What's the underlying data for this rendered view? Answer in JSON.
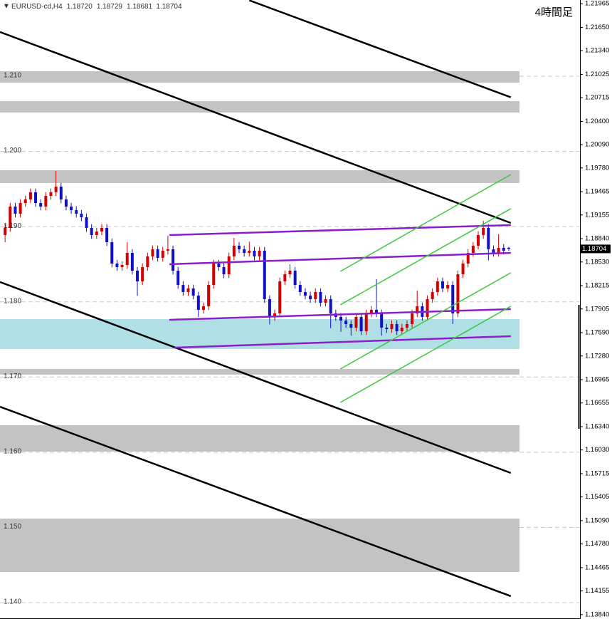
{
  "chart_data": {
    "type": "candlestick",
    "title": "4時間足",
    "symbol": "EURUSD-cd,H4",
    "header_ohlc": [
      "1.18720",
      "1.18729",
      "1.18681",
      "1.18704"
    ],
    "current_price": {
      "value": 1.18704,
      "label": "1.18704"
    },
    "up_color": "#d40000",
    "down_color": "#1010c8",
    "xlim": [
      -1,
      113
    ],
    "ylim": [
      1.13782,
      1.22014
    ],
    "yticks_left": [
      {
        "value": 1.21,
        "label": "1.210"
      },
      {
        "value": 1.2,
        "label": "1.200"
      },
      {
        "value": 1.19,
        "label": "1.190"
      },
      {
        "value": 1.18,
        "label": "1.180"
      },
      {
        "value": 1.17,
        "label": "1.170"
      },
      {
        "value": 1.16,
        "label": "1.160"
      },
      {
        "value": 1.15,
        "label": "1.150"
      },
      {
        "value": 1.14,
        "label": "1.140"
      }
    ],
    "yticks": [
      1.21965,
      {
        "value": 1.2165,
        "label": "1.21650"
      },
      {
        "value": 1.2134,
        "label": "1.21340"
      },
      1.21025,
      1.20715,
      {
        "value": 1.204,
        "label": "1.20400"
      },
      {
        "value": 1.2009,
        "label": "1.20090"
      },
      {
        "value": 1.1978,
        "label": "1.19780"
      },
      1.19465,
      1.19155,
      {
        "value": 1.1884,
        "label": "1.18840"
      },
      {
        "value": 1.1853,
        "label": "1.18530"
      },
      1.18215,
      1.17905,
      {
        "value": 1.1759,
        "label": "1.17590"
      },
      {
        "value": 1.1728,
        "label": "1.17280"
      },
      1.16965,
      1.16655,
      {
        "value": 1.1634,
        "label": "1.16340"
      },
      {
        "value": 1.1603,
        "label": "1.16030"
      },
      1.15715,
      1.15405,
      {
        "value": 1.1509,
        "label": "1.15090"
      },
      {
        "value": 1.1478,
        "label": "1.14780"
      },
      1.14465,
      1.14155,
      {
        "value": 1.1384,
        "label": "1.13840"
      }
    ],
    "grid": true,
    "zones": [
      {
        "low": 1.20915,
        "high": 1.21067,
        "color": "#c3c3c3"
      },
      {
        "low": 1.20517,
        "high": 1.20669,
        "color": "#c3c3c3"
      },
      {
        "low": 1.1958,
        "high": 1.1975,
        "color": "#c3c3c3"
      },
      {
        "low": 1.17372,
        "high": 1.1777,
        "color": "#b0e0e6"
      },
      {
        "low": 1.17032,
        "high": 1.17107,
        "color": "#c3c3c3"
      },
      {
        "low": 1.16009,
        "high": 1.16359,
        "color": "#c3c3c3"
      },
      {
        "low": 1.14408,
        "high": 1.15118,
        "color": "#c3c3c3"
      }
    ],
    "lines": [
      {
        "color": "#000000",
        "points": [
          [
            48,
            1.2201
          ],
          [
            99.4,
            1.2072
          ]
        ]
      },
      {
        "color": "#000000",
        "points": [
          [
            -1,
            1.21588
          ],
          [
            99.4,
            1.19049
          ]
        ]
      },
      {
        "color": "#000000",
        "points": [
          [
            -1,
            1.18263
          ],
          [
            99.4,
            1.15724
          ]
        ]
      },
      {
        "color": "#000000",
        "points": [
          [
            -1,
            1.16605
          ],
          [
            99.4,
            1.14086
          ]
        ]
      },
      {
        "color": "#8a1ec8",
        "points": [
          [
            32.3,
            1.18888
          ],
          [
            99.4,
            1.19021
          ]
        ]
      },
      {
        "color": "#8a1ec8",
        "points": [
          [
            32.3,
            1.185
          ],
          [
            99.4,
            1.18651
          ]
        ]
      },
      {
        "color": "#8a1ec8",
        "points": [
          [
            32.3,
            1.17761
          ],
          [
            99.4,
            1.17903
          ]
        ]
      },
      {
        "color": "#8a1ec8",
        "points": [
          [
            33.3,
            1.17391
          ],
          [
            99.4,
            1.17543
          ]
        ]
      },
      {
        "color": "#3cc83c",
        "points": [
          [
            65.9,
            1.18405
          ],
          [
            99.4,
            1.19693
          ]
        ]
      },
      {
        "color": "#3cc83c",
        "points": [
          [
            65.9,
            1.1796
          ],
          [
            99.4,
            1.19239
          ]
        ]
      },
      {
        "color": "#3cc83c",
        "points": [
          [
            65.9,
            1.17107
          ],
          [
            99.4,
            1.18386
          ]
        ]
      },
      {
        "color": "#3cc83c",
        "points": [
          [
            65.9,
            1.16662
          ],
          [
            99.4,
            1.17941
          ]
        ]
      }
    ],
    "candles": [
      [
        1.18888,
        1.19033,
        1.18793,
        1.18983
      ],
      [
        1.18983,
        1.19317,
        1.18933,
        1.19267
      ],
      [
        1.19267,
        1.19317,
        1.19122,
        1.19172
      ],
      [
        1.19172,
        1.19364,
        1.19122,
        1.19314
      ],
      [
        1.19314,
        1.19412,
        1.19264,
        1.19362
      ],
      [
        1.19362,
        1.19507,
        1.19312,
        1.19457
      ],
      [
        1.19457,
        1.19507,
        1.19264,
        1.19314
      ],
      [
        1.19314,
        1.19364,
        1.19217,
        1.19267
      ],
      [
        1.19267,
        1.19459,
        1.19217,
        1.19409
      ],
      [
        1.19409,
        1.19507,
        1.19359,
        1.19457
      ],
      [
        1.19457,
        1.19741,
        1.19407,
        1.19532
      ],
      [
        1.19532,
        1.19582,
        1.19312,
        1.19362
      ],
      [
        1.19362,
        1.19412,
        1.19217,
        1.19267
      ],
      [
        1.19267,
        1.19317,
        1.1917,
        1.1922
      ],
      [
        1.1922,
        1.1927,
        1.19122,
        1.19172
      ],
      [
        1.19172,
        1.19222,
        1.19075,
        1.19125
      ],
      [
        1.19125,
        1.19175,
        1.18933,
        1.18983
      ],
      [
        1.18983,
        1.19033,
        1.18838,
        1.18888
      ],
      [
        1.18888,
        1.18985,
        1.18838,
        1.18935
      ],
      [
        1.18935,
        1.19033,
        1.18885,
        1.18983
      ],
      [
        1.18983,
        1.19033,
        1.18743,
        1.18793
      ],
      [
        1.18793,
        1.18843,
        1.18459,
        1.18509
      ],
      [
        1.18509,
        1.18559,
        1.18412,
        1.18462
      ],
      [
        1.18462,
        1.1854,
        1.18412,
        1.1849
      ],
      [
        1.1849,
        1.18794,
        1.1844,
        1.18651
      ],
      [
        1.18651,
        1.18701,
        1.18364,
        1.18414
      ],
      [
        1.18414,
        1.18464,
        1.1808,
        1.18272
      ],
      [
        1.18272,
        1.18512,
        1.18222,
        1.18462
      ],
      [
        1.18462,
        1.18654,
        1.18412,
        1.18604
      ],
      [
        1.18604,
        1.18749,
        1.18554,
        1.18699
      ],
      [
        1.18699,
        1.18749,
        1.18535,
        1.18585
      ],
      [
        1.18585,
        1.1873,
        1.18535,
        1.1868
      ],
      [
        1.1868,
        1.1888,
        1.1863,
        1.18699
      ],
      [
        1.18699,
        1.18749,
        1.18364,
        1.18414
      ],
      [
        1.18414,
        1.18464,
        1.18175,
        1.18225
      ],
      [
        1.18225,
        1.18275,
        1.1808,
        1.1813
      ],
      [
        1.1813,
        1.18228,
        1.1808,
        1.18178
      ],
      [
        1.18178,
        1.18228,
        1.18033,
        1.18083
      ],
      [
        1.18083,
        1.18133,
        1.178,
        1.17894
      ],
      [
        1.17894,
        1.17991,
        1.17844,
        1.17941
      ],
      [
        1.17941,
        1.18275,
        1.17891,
        1.18225
      ],
      [
        1.18225,
        1.18559,
        1.18175,
        1.18509
      ],
      [
        1.18509,
        1.18559,
        1.18412,
        1.18462
      ],
      [
        1.18462,
        1.18512,
        1.18317,
        1.18367
      ],
      [
        1.18367,
        1.18654,
        1.18317,
        1.18604
      ],
      [
        1.18604,
        1.1885,
        1.18554,
        1.18746
      ],
      [
        1.18746,
        1.18796,
        1.18649,
        1.18699
      ],
      [
        1.18699,
        1.18749,
        1.18601,
        1.18651
      ],
      [
        1.18651,
        1.188,
        1.18601,
        1.1868
      ],
      [
        1.1868,
        1.1873,
        1.18554,
        1.18604
      ],
      [
        1.18604,
        1.1873,
        1.18554,
        1.1868
      ],
      [
        1.1868,
        1.1873,
        1.17986,
        1.18036
      ],
      [
        1.18036,
        1.18086,
        1.177,
        1.17799
      ],
      [
        1.17799,
        1.17896,
        1.17749,
        1.17846
      ],
      [
        1.17846,
        1.18322,
        1.17796,
        1.18272
      ],
      [
        1.18272,
        1.18417,
        1.18222,
        1.18367
      ],
      [
        1.18367,
        1.185,
        1.18317,
        1.18414
      ],
      [
        1.18414,
        1.18464,
        1.18175,
        1.18225
      ],
      [
        1.18225,
        1.18275,
        1.1808,
        1.1813
      ],
      [
        1.1813,
        1.1818,
        1.18033,
        1.18083
      ],
      [
        1.18083,
        1.18133,
        1.17986,
        1.18036
      ],
      [
        1.18036,
        1.1818,
        1.17986,
        1.1813
      ],
      [
        1.1813,
        1.1818,
        1.17938,
        1.17988
      ],
      [
        1.17988,
        1.18086,
        1.17938,
        1.18036
      ],
      [
        1.18036,
        1.18086,
        1.1765,
        1.17846
      ],
      [
        1.17846,
        1.17896,
        1.17749,
        1.17799
      ],
      [
        1.17799,
        1.17849,
        1.176,
        1.17751
      ],
      [
        1.17751,
        1.17801,
        1.17654,
        1.17704
      ],
      [
        1.17704,
        1.17754,
        1.1755,
        1.17657
      ],
      [
        1.17657,
        1.17849,
        1.17607,
        1.17799
      ],
      [
        1.17799,
        1.17849,
        1.17559,
        1.17609
      ],
      [
        1.17609,
        1.17896,
        1.17559,
        1.17846
      ],
      [
        1.17846,
        1.17944,
        1.17796,
        1.17894
      ],
      [
        1.17894,
        1.183,
        1.17796,
        1.17846
      ],
      [
        1.17846,
        1.17896,
        1.1755,
        1.17657
      ],
      [
        1.17657,
        1.17707,
        1.17588,
        1.17638
      ],
      [
        1.17638,
        1.17754,
        1.17588,
        1.17704
      ],
      [
        1.17704,
        1.17754,
        1.17559,
        1.17609
      ],
      [
        1.17609,
        1.17707,
        1.17559,
        1.17657
      ],
      [
        1.17657,
        1.17754,
        1.17607,
        1.17704
      ],
      [
        1.17704,
        1.17896,
        1.17654,
        1.17846
      ],
      [
        1.17846,
        1.1815,
        1.17796,
        1.17941
      ],
      [
        1.17941,
        1.17991,
        1.17749,
        1.17799
      ],
      [
        1.17799,
        1.18086,
        1.17749,
        1.18036
      ],
      [
        1.18036,
        1.1818,
        1.17986,
        1.1813
      ],
      [
        1.1813,
        1.18322,
        1.1808,
        1.18272
      ],
      [
        1.18272,
        1.18322,
        1.18128,
        1.18178
      ],
      [
        1.18178,
        1.18275,
        1.18128,
        1.18225
      ],
      [
        1.18225,
        1.18275,
        1.17704,
        1.17846
      ],
      [
        1.17846,
        1.18417,
        1.17796,
        1.18367
      ],
      [
        1.18367,
        1.18559,
        1.18317,
        1.18509
      ],
      [
        1.18509,
        1.18701,
        1.18459,
        1.18651
      ],
      [
        1.18651,
        1.18796,
        1.18601,
        1.18746
      ],
      [
        1.18746,
        1.18938,
        1.18696,
        1.18888
      ],
      [
        1.18888,
        1.19077,
        1.18838,
        1.18983
      ],
      [
        1.18983,
        1.19033,
        1.1855,
        1.18699
      ],
      [
        1.18699,
        1.18749,
        1.18601,
        1.18651
      ],
      [
        1.18651,
        1.189,
        1.18601,
        1.18718
      ],
      [
        1.18718,
        1.18768,
        1.1863,
        1.1868
      ],
      [
        1.1872,
        1.18729,
        1.18681,
        1.18704
      ]
    ]
  }
}
